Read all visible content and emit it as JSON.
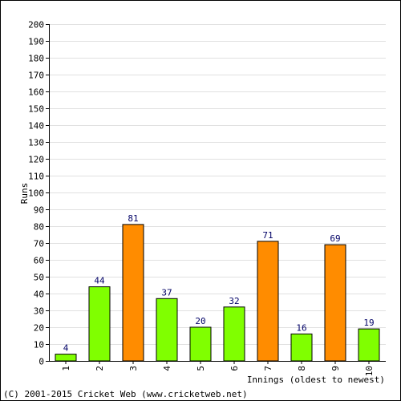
{
  "chart_data": {
    "type": "bar",
    "categories": [
      "1",
      "2",
      "3",
      "4",
      "5",
      "6",
      "7",
      "8",
      "9",
      "10"
    ],
    "values": [
      4,
      44,
      81,
      37,
      20,
      32,
      71,
      16,
      69,
      19
    ],
    "bar_colors": [
      "#80ff00",
      "#80ff00",
      "#ff8c00",
      "#80ff00",
      "#80ff00",
      "#80ff00",
      "#ff8c00",
      "#80ff00",
      "#ff8c00",
      "#80ff00"
    ],
    "xlabel": "Innings (oldest to newest)",
    "ylabel": "Runs",
    "ylim": [
      0,
      200
    ],
    "ytick_step": 10,
    "grid": true,
    "footer": "(C) 2001-2015 Cricket Web (www.cricketweb.net)"
  }
}
